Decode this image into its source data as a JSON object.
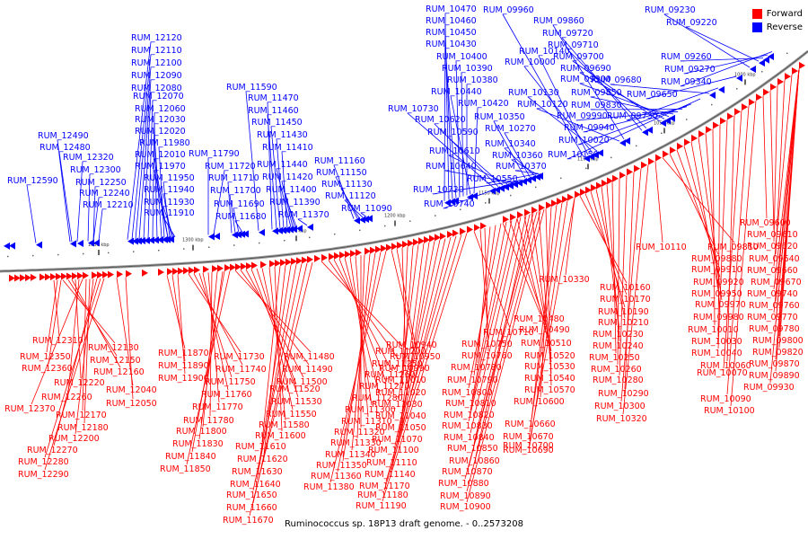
{
  "caption": "Ruminococcus sp. 18P13 draft genome. - 0..2573208",
  "legend": [
    {
      "label": "Forward",
      "color": "#ff0000"
    },
    {
      "label": "Reverse",
      "color": "#0000ff"
    }
  ],
  "colors": {
    "forward": "#ff0000",
    "reverse": "#0000ff",
    "backbone": "#808080",
    "line_forward": "#ff0000",
    "line_reverse": "#0000ff"
  },
  "tick_labels": [
    "1350 kbp",
    "1300 kbp",
    "1250 kbp",
    "1200 kbp",
    "1150 kbp",
    "1100 kbp",
    "1050 kbp",
    "1000 kbp"
  ],
  "reverse_labels": [
    "RUM_12590",
    "RUM_12490",
    "RUM_12480",
    "RUM_12320",
    "RUM_12300",
    "RUM_12250",
    "RUM_12240",
    "RUM_12210",
    "RUM_12120",
    "RUM_12110",
    "RUM_12100",
    "RUM_12090",
    "RUM_12080",
    "RUM_12070",
    "RUM_12060",
    "RUM_12030",
    "RUM_12020",
    "RUM_11980",
    "RUM_12010",
    "RUM_11970",
    "RUM_11950",
    "RUM_11940",
    "RUM_11930",
    "RUM_11910",
    "RUM_11790",
    "RUM_11720",
    "RUM_11710",
    "RUM_11700",
    "RUM_11690",
    "RUM_11680",
    "RUM_11590",
    "RUM_11470",
    "RUM_11460",
    "RUM_11450",
    "RUM_11430",
    "RUM_11410",
    "RUM_11440",
    "RUM_11420",
    "RUM_11400",
    "RUM_11390",
    "RUM_11370",
    "RUM_11160",
    "RUM_11150",
    "RUM_11130",
    "RUM_11120",
    "RUM_11090",
    "RUM_10470",
    "RUM_10460",
    "RUM_10450",
    "RUM_10430",
    "RUM_10400",
    "RUM_10390",
    "RUM_10380",
    "RUM_10440",
    "RUM_10420",
    "RUM_10730",
    "RUM_10620",
    "RUM_10590",
    "RUM_10610",
    "RUM_10640",
    "RUM_10720",
    "RUM_10740",
    "RUM_10350",
    "RUM_10270",
    "RUM_10340",
    "RUM_10360",
    "RUM_10370",
    "RUM_10550",
    "RUM_09960",
    "RUM_10140",
    "RUM_10000",
    "RUM_10130",
    "RUM_10120",
    "RUM_09860",
    "RUM_09720",
    "RUM_09710",
    "RUM_09700",
    "RUM_09690",
    "RUM_09900",
    "RUM_09850",
    "RUM_09990",
    "RUM_09830",
    "RUM_09940",
    "RUM_10020",
    "RUM_10150",
    "RUM_09680",
    "RUM_09730",
    "RUM_09650",
    "RUM_09230",
    "RUM_09220",
    "RUM_09260",
    "RUM_09270",
    "RUM_09340"
  ],
  "forward_labels": [
    "RUM_12310",
    "RUM_12130",
    "RUM_12350",
    "RUM_12150",
    "RUM_12360",
    "RUM_12160",
    "RUM_12220",
    "RUM_12260",
    "RUM_12370",
    "RUM_12170",
    "RUM_12180",
    "RUM_12200",
    "RUM_12270",
    "RUM_12280",
    "RUM_12290",
    "RUM_12040",
    "RUM_12050",
    "RUM_11870",
    "RUM_11890",
    "RUM_11900",
    "RUM_11730",
    "RUM_11740",
    "RUM_11750",
    "RUM_11760",
    "RUM_11770",
    "RUM_11780",
    "RUM_11800",
    "RUM_11830",
    "RUM_11840",
    "RUM_11850",
    "RUM_11480",
    "RUM_11490",
    "RUM_11500",
    "RUM_11520",
    "RUM_11530",
    "RUM_11550",
    "RUM_11580",
    "RUM_11600",
    "RUM_11610",
    "RUM_11620",
    "RUM_11630",
    "RUM_11640",
    "RUM_11650",
    "RUM_11660",
    "RUM_11670",
    "RUM_11200",
    "RUM_11250",
    "RUM_11260",
    "RUM_11270",
    "RUM_11280",
    "RUM_11300",
    "RUM_11310",
    "RUM_11320",
    "RUM_11330",
    "RUM_11340",
    "RUM_11350",
    "RUM_11360",
    "RUM_11380",
    "RUM_10940",
    "RUM_10950",
    "RUM_10990",
    "RUM_11010",
    "RUM_11020",
    "RUM_11030",
    "RUM_11040",
    "RUM_11050",
    "RUM_11070",
    "RUM_11100",
    "RUM_11110",
    "RUM_11140",
    "RUM_11170",
    "RUM_11180",
    "RUM_11190",
    "RUM_10710",
    "RUM_10750",
    "RUM_10760",
    "RUM_10780",
    "RUM_10790",
    "RUM_10800",
    "RUM_10810",
    "RUM_10820",
    "RUM_10830",
    "RUM_10840",
    "RUM_10850",
    "RUM_10860",
    "RUM_10870",
    "RUM_10880",
    "RUM_10890",
    "RUM_10900",
    "RUM_10480",
    "RUM_10490",
    "RUM_10510",
    "RUM_10520",
    "RUM_10530",
    "RUM_10540",
    "RUM_10570",
    "RUM_10600",
    "RUM_10660",
    "RUM_10670",
    "RUM_10690",
    "RUM_10700",
    "RUM_10330",
    "RUM_10160",
    "RUM_10170",
    "RUM_10190",
    "RUM_10210",
    "RUM_10230",
    "RUM_10240",
    "RUM_10250",
    "RUM_10260",
    "RUM_10280",
    "RUM_10290",
    "RUM_10300",
    "RUM_10320",
    "RUM_10110",
    "RUM_09810",
    "RUM_09880",
    "RUM_09910",
    "RUM_09920",
    "RUM_09950",
    "RUM_09970",
    "RUM_09980",
    "RUM_10010",
    "RUM_10030",
    "RUM_10040",
    "RUM_10060",
    "RUM_10070",
    "RUM_10090",
    "RUM_10100",
    "RUM_09600",
    "RUM_09610",
    "RUM_09620",
    "RUM_09640",
    "RUM_09660",
    "RUM_09670",
    "RUM_09740",
    "RUM_09760",
    "RUM_09770",
    "RUM_09780",
    "RUM_09800",
    "RUM_09820",
    "RUM_09870",
    "RUM_09890",
    "RUM_09930"
  ]
}
